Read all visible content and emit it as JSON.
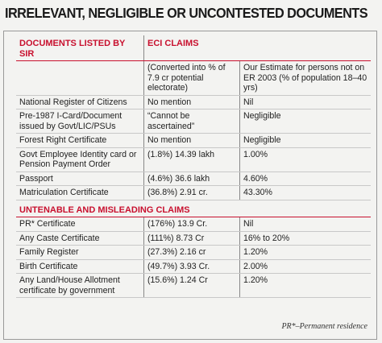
{
  "header": {
    "title": "IRRELEVANT, NEGLIGIBLE OR UNCONTESTED DOCUMENTS"
  },
  "table": {
    "columns": [
      "DOCUMENTS LISTED BY SIR",
      "ECI CLAIMS"
    ],
    "subheader": [
      "(Converted into % of 7.9 cr potential electorate)",
      "Our Estimate for persons not on ER 2003 (% of population 18–40 yrs)"
    ],
    "sections": [
      {
        "rows": [
          [
            "National Register of Citizens",
            "No mention",
            "Nil"
          ],
          [
            "Pre-1987 I-Card/Document issued by Govt/LIC/PSUs",
            "“Cannot be ascertained”",
            "Negligible"
          ],
          [
            "Forest Right Certificate",
            "No mention",
            "Negligible"
          ],
          [
            "Govt Employee Identity card or Pension Payment Order",
            "(1.8%) 14.39 lakh",
            "1.00%"
          ],
          [
            "Passport",
            "(4.6%) 36.6 lakh",
            "4.60%"
          ],
          [
            "Matriculation Certificate",
            "(36.8%) 2.91 cr.",
            "43.30%"
          ]
        ]
      },
      {
        "title": "UNTENABLE AND MISLEADING CLAIMS",
        "rows": [
          [
            "PR* Certificate",
            "(176%) 13.9 Cr.",
            "Nil"
          ],
          [
            "Any Caste Certificate",
            "(111%) 8.73 Cr",
            "16% to 20%"
          ],
          [
            "Family Register",
            "(27.3%) 2.16 cr",
            "1.20%"
          ],
          [
            "Birth Certificate",
            "(49.7%) 3.93 Cr.",
            "2.00%"
          ],
          [
            "Any Land/House Allotment certificate by government",
            "(15.6%) 1.24 Cr",
            "1.20%"
          ]
        ]
      }
    ]
  },
  "footnote": "PR*–Permanent residence"
}
